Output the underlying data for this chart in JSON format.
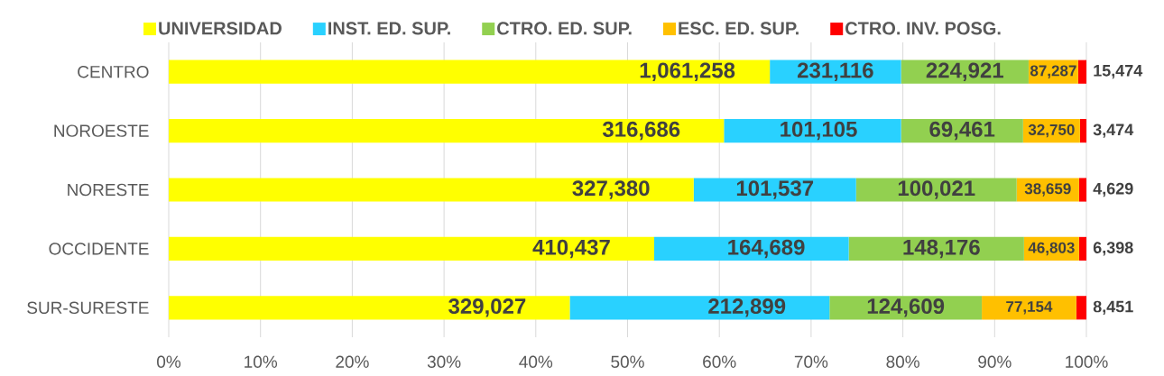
{
  "chart_data": {
    "type": "bar",
    "orientation": "horizontal",
    "stacked": true,
    "categories": [
      "CENTRO",
      "NOROESTE",
      "NORESTE",
      "OCCIDENTE",
      "SUR-SURESTE"
    ],
    "series": [
      {
        "name": "UNIVERSIDAD",
        "color": "#ffff00",
        "values": [
          65.5,
          60.5,
          57.2,
          52.9,
          43.7
        ]
      },
      {
        "name": "INST. ED. SUP.",
        "color": "#29d1ff",
        "values": [
          14.3,
          19.3,
          17.7,
          21.2,
          28.3
        ]
      },
      {
        "name": "CTRO. ED. SUP.",
        "color": "#92d050",
        "values": [
          13.9,
          13.3,
          17.5,
          19.1,
          16.6
        ]
      },
      {
        "name": "ESC. ED. SUP.",
        "color": "#ffc000",
        "values": [
          5.4,
          6.2,
          6.8,
          6.0,
          10.3
        ]
      },
      {
        "name": "CTRO. INV. POSG.",
        "color": "#ff0000",
        "values": [
          0.9,
          0.7,
          0.8,
          0.8,
          1.1
        ]
      }
    ],
    "xlim": [
      0,
      100
    ],
    "xticks": [
      {
        "value": 0,
        "label": "0%"
      },
      {
        "value": 10,
        "label": "10%"
      },
      {
        "value": 20,
        "label": "20%"
      },
      {
        "value": 30,
        "label": "30%"
      },
      {
        "value": 40,
        "label": "40%"
      },
      {
        "value": 50,
        "label": "50%"
      },
      {
        "value": 60,
        "label": "60%"
      },
      {
        "value": 70,
        "label": "70%"
      },
      {
        "value": 80,
        "label": "80%"
      },
      {
        "value": 90,
        "label": "90%"
      },
      {
        "value": 100,
        "label": "100%"
      }
    ],
    "grid": "x",
    "legend": "top",
    "annotations": [
      {
        "text": "1,061,258",
        "x": 65.5,
        "y": "CENTRO"
      },
      {
        "text": "231,116",
        "x": 79.8,
        "y": "CENTRO"
      },
      {
        "text": "224,921",
        "x": 93.7,
        "y": "CENTRO"
      },
      {
        "text": "87,287",
        "x": 99.1,
        "y": "CENTRO"
      },
      {
        "text": "15,474",
        "x": 100,
        "y": "CENTRO"
      },
      {
        "text": "316,686",
        "x": 60.5,
        "y": "NOROESTE"
      },
      {
        "text": "101,105",
        "x": 79.8,
        "y": "NOROESTE"
      },
      {
        "text": "69,461",
        "x": 93.1,
        "y": "NOROESTE"
      },
      {
        "text": "32,750",
        "x": 99.3,
        "y": "NOROESTE"
      },
      {
        "text": "3,474",
        "x": 100,
        "y": "NOROESTE"
      },
      {
        "text": "327,380",
        "x": 57.2,
        "y": "NORESTE"
      },
      {
        "text": "101,537",
        "x": 74.9,
        "y": "NORESTE"
      },
      {
        "text": "100,021",
        "x": 92.4,
        "y": "NORESTE"
      },
      {
        "text": "38,659",
        "x": 99.2,
        "y": "NORESTE"
      },
      {
        "text": "4,629",
        "x": 100,
        "y": "NORESTE"
      },
      {
        "text": "410,437",
        "x": 52.9,
        "y": "OCCIDENTE"
      },
      {
        "text": "164,689",
        "x": 74.1,
        "y": "OCCIDENTE"
      },
      {
        "text": "148,176",
        "x": 93.2,
        "y": "OCCIDENTE"
      },
      {
        "text": "46,803",
        "x": 99.2,
        "y": "OCCIDENTE"
      },
      {
        "text": "6,398",
        "x": 100,
        "y": "OCCIDENTE"
      },
      {
        "text": "329,027",
        "x": 43.7,
        "y": "SUR-SURESTE"
      },
      {
        "text": "212,899",
        "x": 72.0,
        "y": "SUR-SURESTE"
      },
      {
        "text": "124,609",
        "x": 88.6,
        "y": "SUR-SURESTE"
      },
      {
        "text": "77,154",
        "x": 98.9,
        "y": "SUR-SURESTE"
      },
      {
        "text": "8,451",
        "x": 100,
        "y": "SUR-SURESTE"
      }
    ]
  }
}
